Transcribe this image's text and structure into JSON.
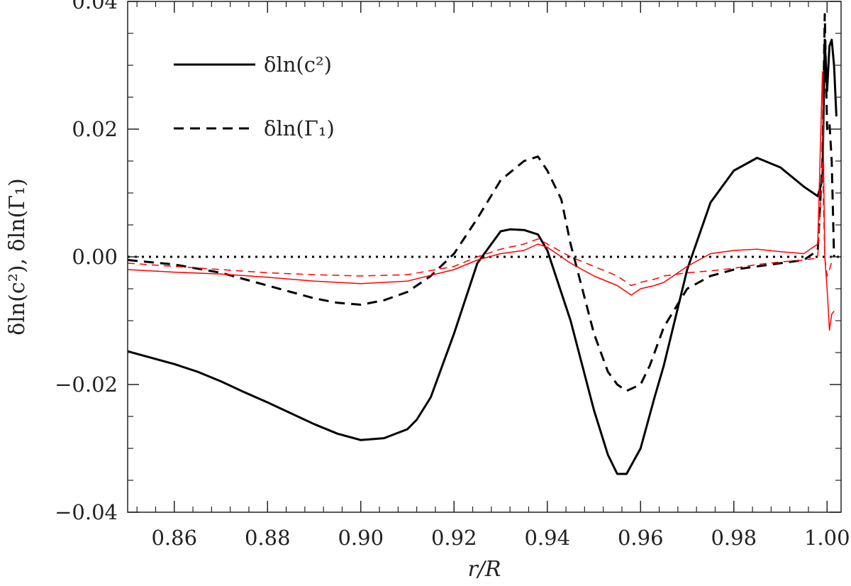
{
  "chart_data": {
    "type": "line",
    "title": "",
    "xlabel": "r/R",
    "ylabel": "δln(c²), δln(Γ₁)",
    "xlim": [
      0.85,
      1.003
    ],
    "ylim": [
      -0.04,
      0.04
    ],
    "xticks": [
      0.86,
      0.88,
      0.9,
      0.92,
      0.94,
      0.96,
      0.98,
      1.0
    ],
    "xtick_labels": [
      "0.86",
      "0.88",
      "0.90",
      "0.92",
      "0.94",
      "0.96",
      "0.98",
      "1.00"
    ],
    "yticks": [
      -0.04,
      -0.02,
      0.0,
      0.02,
      0.04
    ],
    "ytick_labels": [
      "−0.04",
      "−0.02",
      "0.00",
      "0.02",
      "0.04"
    ],
    "grid": false,
    "legend": {
      "placement": "top-left",
      "entries": [
        {
          "label": "δln(c²)",
          "style": "solid"
        },
        {
          "label": "δln(Γ₁)",
          "style": "dashed"
        }
      ]
    },
    "reference_line": {
      "y": 0.0,
      "style": "dotted",
      "color": "#000000"
    },
    "series": [
      {
        "name": "δln(c²)",
        "color": "#000000",
        "style": "solid",
        "width": 3,
        "x": [
          0.85,
          0.855,
          0.86,
          0.865,
          0.87,
          0.875,
          0.88,
          0.885,
          0.89,
          0.895,
          0.9,
          0.905,
          0.91,
          0.912,
          0.915,
          0.92,
          0.925,
          0.93,
          0.932,
          0.935,
          0.938,
          0.94,
          0.945,
          0.95,
          0.953,
          0.955,
          0.957,
          0.96,
          0.963,
          0.965,
          0.97,
          0.975,
          0.98,
          0.985,
          0.99,
          0.995,
          0.998,
          0.999,
          0.9995,
          1.0,
          1.0005,
          1.001,
          1.0015,
          1.002
        ],
        "y": [
          -0.0148,
          -0.0158,
          -0.0168,
          -0.018,
          -0.0195,
          -0.0212,
          -0.0228,
          -0.0245,
          -0.0262,
          -0.0277,
          -0.0287,
          -0.0284,
          -0.027,
          -0.0255,
          -0.022,
          -0.012,
          -0.001,
          0.004,
          0.0043,
          0.0042,
          0.0035,
          0.001,
          -0.01,
          -0.024,
          -0.031,
          -0.034,
          -0.034,
          -0.03,
          -0.022,
          -0.017,
          -0.002,
          0.0085,
          0.0135,
          0.0155,
          0.014,
          0.011,
          0.0095,
          0.012,
          0.034,
          0.026,
          0.033,
          0.034,
          0.03,
          0.022
        ]
      },
      {
        "name": "δln(Γ₁)",
        "color": "#000000",
        "style": "dashed",
        "width": 3,
        "x": [
          0.85,
          0.86,
          0.87,
          0.875,
          0.88,
          0.885,
          0.89,
          0.895,
          0.9,
          0.905,
          0.91,
          0.915,
          0.92,
          0.925,
          0.93,
          0.935,
          0.938,
          0.94,
          0.943,
          0.945,
          0.95,
          0.953,
          0.955,
          0.957,
          0.96,
          0.962,
          0.965,
          0.97,
          0.975,
          0.98,
          0.985,
          0.99,
          0.995,
          0.998,
          0.999,
          0.9995,
          1.0,
          1.0005,
          1.001,
          1.0015
        ],
        "y": [
          -0.0005,
          -0.0012,
          -0.0025,
          -0.0035,
          -0.0045,
          -0.0055,
          -0.0065,
          -0.0072,
          -0.0075,
          -0.0068,
          -0.0055,
          -0.003,
          0.0005,
          0.006,
          0.012,
          0.015,
          0.0157,
          0.0135,
          0.009,
          0.002,
          -0.012,
          -0.018,
          -0.02,
          -0.021,
          -0.02,
          -0.017,
          -0.011,
          -0.005,
          -0.003,
          -0.002,
          -0.0015,
          -0.001,
          -0.0005,
          0.001,
          0.015,
          0.038,
          0.02,
          0.021,
          0.015,
          0.0
        ]
      },
      {
        "name": "",
        "color": "#ff0000",
        "style": "solid",
        "width": 1.5,
        "x": [
          0.85,
          0.86,
          0.87,
          0.88,
          0.89,
          0.9,
          0.91,
          0.92,
          0.925,
          0.93,
          0.935,
          0.938,
          0.94,
          0.945,
          0.95,
          0.955,
          0.958,
          0.96,
          0.963,
          0.965,
          0.97,
          0.975,
          0.98,
          0.985,
          0.99,
          0.995,
          0.998,
          0.999,
          0.9995,
          1.0,
          1.0005,
          1.001,
          1.0015
        ],
        "y": [
          -0.002,
          -0.0024,
          -0.0027,
          -0.0032,
          -0.0038,
          -0.0042,
          -0.0038,
          -0.002,
          -0.0005,
          0.0005,
          0.001,
          0.002,
          0.0015,
          -0.001,
          -0.003,
          -0.0045,
          -0.006,
          -0.005,
          -0.0045,
          -0.004,
          -0.0015,
          0.0005,
          0.001,
          0.0012,
          0.0008,
          0.0005,
          0.002,
          0.029,
          0.0,
          -0.005,
          -0.0115,
          -0.009,
          -0.0085
        ]
      },
      {
        "name": "",
        "color": "#ff0000",
        "style": "dashed",
        "width": 1.5,
        "x": [
          0.85,
          0.86,
          0.87,
          0.88,
          0.89,
          0.9,
          0.91,
          0.92,
          0.925,
          0.93,
          0.935,
          0.938,
          0.94,
          0.945,
          0.95,
          0.955,
          0.958,
          0.96,
          0.963,
          0.965,
          0.97,
          0.975,
          0.98,
          0.985,
          0.99,
          0.995,
          0.998,
          0.999,
          0.9995,
          1.0,
          1.0005,
          1.001,
          1.0015
        ],
        "y": [
          -0.001,
          -0.0015,
          -0.002,
          -0.0025,
          -0.0028,
          -0.003,
          -0.0028,
          -0.0015,
          0.0,
          0.0012,
          0.002,
          0.0028,
          0.002,
          0.0,
          -0.0015,
          -0.003,
          -0.0045,
          -0.004,
          -0.0035,
          -0.003,
          -0.0025,
          -0.0022,
          -0.0018,
          -0.0012,
          -0.0008,
          -0.0005,
          -0.0002,
          0.015,
          0.0,
          -0.003,
          -0.002,
          -0.0008,
          -0.0005
        ]
      }
    ]
  }
}
